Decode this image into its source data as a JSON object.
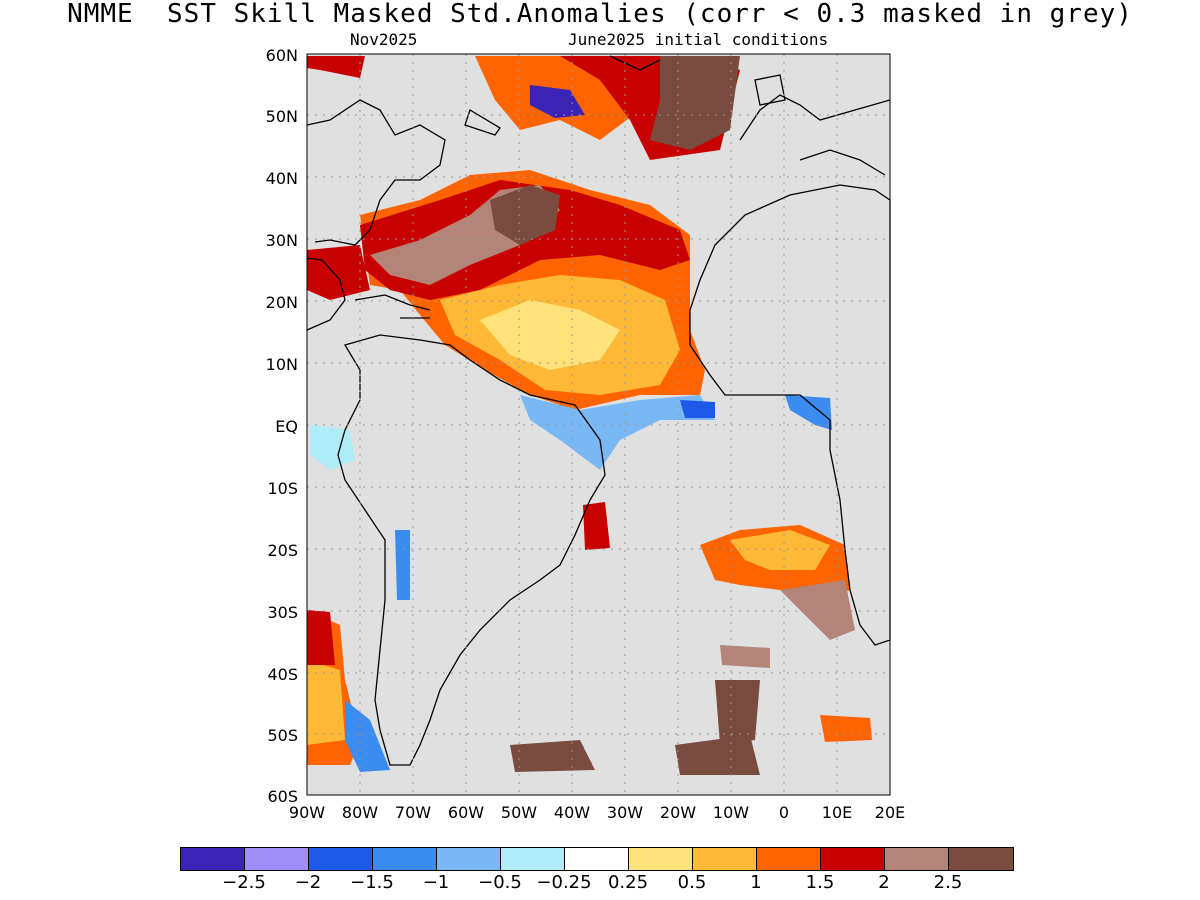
{
  "title": "NMME  SST Skill Masked Std.Anomalies (corr < 0.3 masked in grey)",
  "subtitle_left": "Nov2025",
  "subtitle_right": "June2025 initial conditions",
  "lat_labels": [
    "60N",
    "50N",
    "40N",
    "30N",
    "20N",
    "10N",
    "EQ",
    "10S",
    "20S",
    "30S",
    "40S",
    "50S",
    "60S"
  ],
  "lon_labels": [
    "90W",
    "80W",
    "70W",
    "60W",
    "50W",
    "40W",
    "30W",
    "20W",
    "10W",
    "0",
    "10E",
    "20E"
  ],
  "colorbar": {
    "colors": [
      "#3a23b5",
      "#9e8ef5",
      "#1e5ae8",
      "#3c8cf0",
      "#7ab8f5",
      "#b0ecf8",
      "#ffffff",
      "#ffe27a",
      "#ffb936",
      "#ff6400",
      "#c80000",
      "#b38477",
      "#7a4c40"
    ],
    "labels": [
      "−2.5",
      "−2",
      "−1.5",
      "−1",
      "−0.5",
      "−0.25",
      "0.25",
      "0.5",
      "1",
      "1.5",
      "2",
      "2.5"
    ]
  },
  "colors": {
    "mask_grey": "#e0e0e0",
    "land_outline": "#000000",
    "grid": "#999999"
  }
}
